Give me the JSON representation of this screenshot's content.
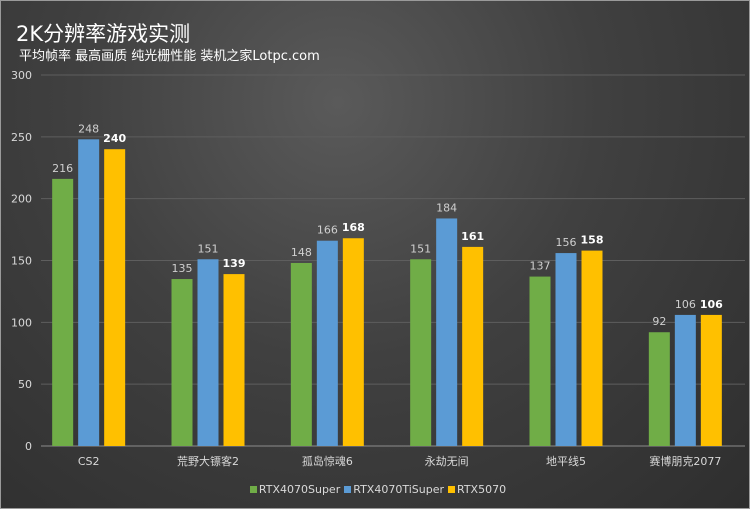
{
  "chart_data": {
    "type": "bar",
    "title": "2K分辨率游戏实测",
    "subtitle": "平均帧率 最高画质 纯光栅性能 装机之家Lotpc.com",
    "categories": [
      "CS2",
      "荒野大镖客2",
      "孤岛惊魂6",
      "永劫无间",
      "地平线5",
      "赛博朋克2077"
    ],
    "series": [
      {
        "name": "RTX4070Super",
        "color": "#70ad47",
        "values": [
          216,
          135,
          148,
          151,
          137,
          92
        ]
      },
      {
        "name": "RTX4070TiSuper",
        "color": "#5b9bd5",
        "values": [
          248,
          151,
          166,
          184,
          156,
          106
        ]
      },
      {
        "name": "RTX5070",
        "color": "#ffc000",
        "values": [
          240,
          139,
          168,
          161,
          158,
          106
        ]
      }
    ],
    "ylim": [
      0,
      300
    ],
    "yticks": [
      0,
      50,
      100,
      150,
      200,
      250,
      300
    ],
    "grid": true,
    "legend": "bottom"
  }
}
